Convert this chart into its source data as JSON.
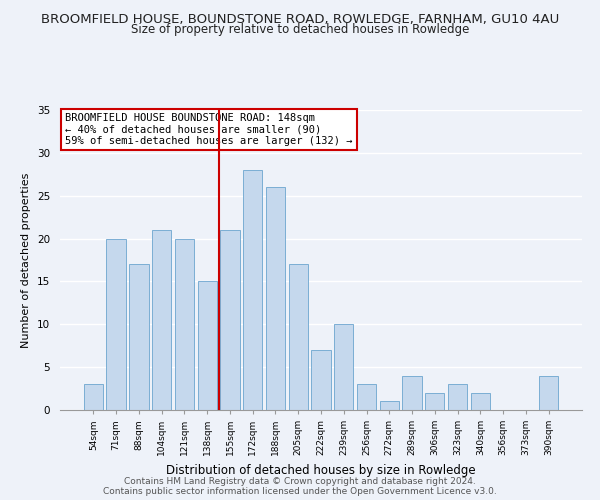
{
  "title": "BROOMFIELD HOUSE, BOUNDSTONE ROAD, ROWLEDGE, FARNHAM, GU10 4AU",
  "subtitle": "Size of property relative to detached houses in Rowledge",
  "xlabel": "Distribution of detached houses by size in Rowledge",
  "ylabel": "Number of detached properties",
  "bar_labels": [
    "54sqm",
    "71sqm",
    "88sqm",
    "104sqm",
    "121sqm",
    "138sqm",
    "155sqm",
    "172sqm",
    "188sqm",
    "205sqm",
    "222sqm",
    "239sqm",
    "256sqm",
    "272sqm",
    "289sqm",
    "306sqm",
    "323sqm",
    "340sqm",
    "356sqm",
    "373sqm",
    "390sqm"
  ],
  "bar_values": [
    3,
    20,
    17,
    21,
    20,
    15,
    21,
    28,
    26,
    17,
    7,
    10,
    3,
    1,
    4,
    2,
    3,
    2,
    0,
    0,
    4
  ],
  "bar_color": "#c5d8ed",
  "bar_edge_color": "#7baed4",
  "vline_x": 6,
  "vline_color": "#cc0000",
  "annotation_text": "BROOMFIELD HOUSE BOUNDSTONE ROAD: 148sqm\n← 40% of detached houses are smaller (90)\n59% of semi-detached houses are larger (132) →",
  "annotation_box_color": "#ffffff",
  "annotation_box_edge": "#cc0000",
  "ylim": [
    0,
    35
  ],
  "yticks": [
    0,
    5,
    10,
    15,
    20,
    25,
    30,
    35
  ],
  "footer1": "Contains HM Land Registry data © Crown copyright and database right 2024.",
  "footer2": "Contains public sector information licensed under the Open Government Licence v3.0.",
  "bg_color": "#eef2f9",
  "grid_color": "#ffffff",
  "title_fontsize": 9.5,
  "subtitle_fontsize": 8.5,
  "xlabel_fontsize": 8.5,
  "ylabel_fontsize": 8,
  "annotation_fontsize": 7.5,
  "footer_fontsize": 6.5
}
